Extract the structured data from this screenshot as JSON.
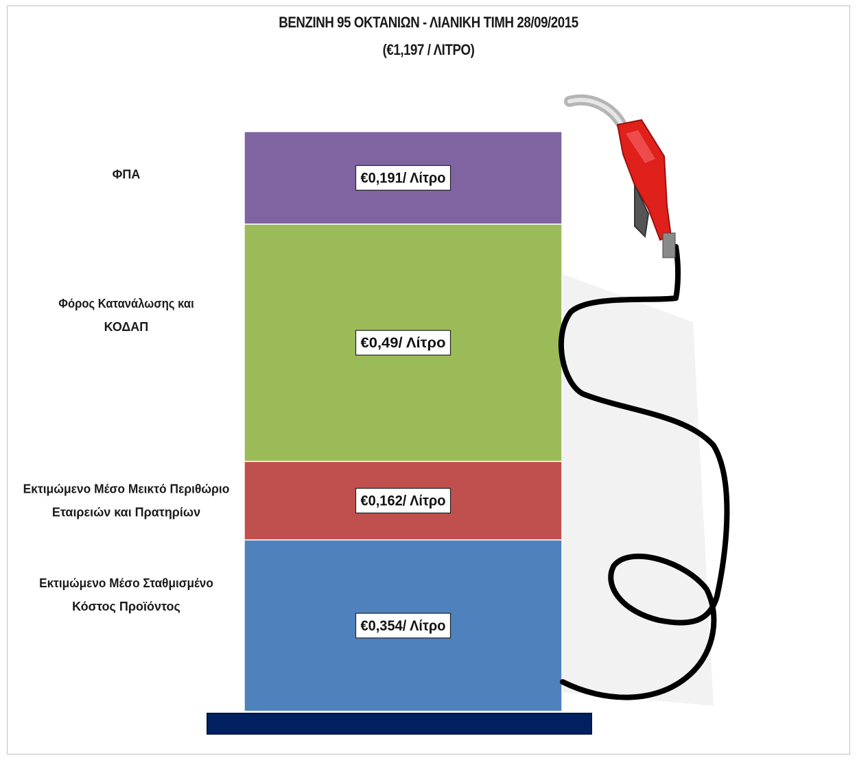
{
  "chart_data": {
    "type": "bar",
    "subtype": "stacked-single-column",
    "title": "ΒΕΝΖΙΝΗ 95 ΟΚΤΑΝΙΩΝ - ΛΙΑΝΙΚΗ ΤΙΜΗ 28/09/2015",
    "subtitle": "(€1,197 / ΛΙΤΡΟ)",
    "total": 1.197,
    "segments": [
      {
        "name": "Εκτιμώμενο Μέσο Σταθμισμένο Κόστος Προϊόντος",
        "label_lines": [
          "Εκτιμώμενο Μέσο Σταθμισμένο",
          "Κόστος Προϊόντος"
        ],
        "value": 0.354,
        "value_label": "€0,354/ Λίτρο",
        "color": "#4f81bd"
      },
      {
        "name": "Εκτιμώμενο Μέσο Μεικτό Περιθώριο Εταιρειών και Πρατηρίων",
        "label_lines": [
          "Εκτιμώμενο Μέσο Μεικτό Περιθώριο",
          "Εταιρειών και Πρατηρίων"
        ],
        "value": 0.162,
        "value_label": "€0,162/ Λίτρο",
        "color": "#c0504d"
      },
      {
        "name": "Φόρος Κατανάλωσης και ΚΟΔΑΠ",
        "label_lines": [
          "Φόρος Κατανάλωσης και",
          "ΚΟΔΑΠ"
        ],
        "value": 0.49,
        "value_label": "€0,49/ Λίτρο",
        "color": "#9bbb59"
      },
      {
        "name": "ΦΠΑ",
        "label_lines": [
          "ΦΠΑ"
        ],
        "value": 0.191,
        "value_label": "€0,191/ Λίτρο",
        "color": "#8064a2"
      }
    ],
    "base_color": "#002060",
    "hose_color": "#000000",
    "nozzle_color": "#e0201b"
  }
}
